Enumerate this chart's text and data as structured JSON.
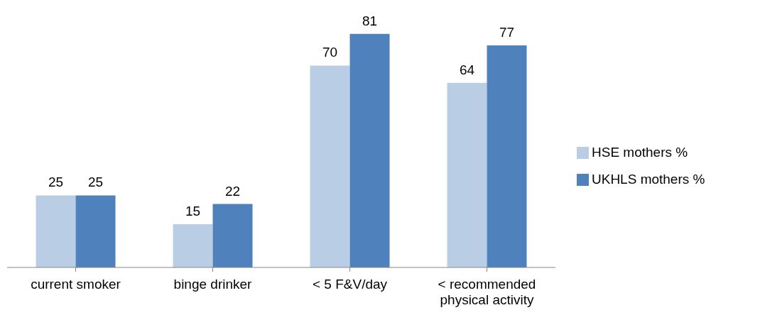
{
  "chart_data": {
    "type": "bar",
    "categories": [
      "current smoker",
      "binge drinker",
      "< 5 F&V/day",
      "< recommended physical activity"
    ],
    "series": [
      {
        "name": "HSE mothers %",
        "color": "#b9cde5",
        "values": [
          25,
          15,
          70,
          64
        ]
      },
      {
        "name": "UKHLS mothers %",
        "color": "#4f81bd",
        "values": [
          25,
          22,
          81,
          77
        ]
      }
    ],
    "data_labels": true,
    "legend": "right",
    "grid": false
  }
}
